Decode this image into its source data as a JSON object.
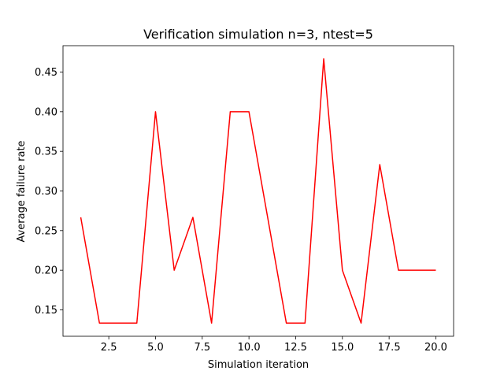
{
  "chart_data": {
    "type": "line",
    "title": "Verification simulation n=3, ntest=5",
    "xlabel": "Simulation iteration",
    "ylabel": "Average failure rate",
    "xlim": [
      0.05,
      20.95
    ],
    "ylim": [
      0.1167,
      0.4833
    ],
    "grid": false,
    "line_color": "#ff0000",
    "x_ticks": [
      2.5,
      5.0,
      7.5,
      10.0,
      12.5,
      15.0,
      17.5,
      20.0
    ],
    "x_tick_labels": [
      "2.5",
      "5.0",
      "7.5",
      "10.0",
      "12.5",
      "15.0",
      "17.5",
      "20.0"
    ],
    "y_ticks": [
      0.15,
      0.2,
      0.25,
      0.3,
      0.35,
      0.4,
      0.45
    ],
    "y_tick_labels": [
      "0.15",
      "0.20",
      "0.25",
      "0.30",
      "0.35",
      "0.40",
      "0.45"
    ],
    "x": [
      1,
      2,
      3,
      4,
      5,
      6,
      7,
      8,
      9,
      10,
      11,
      12,
      13,
      14,
      15,
      16,
      17,
      18,
      19,
      20
    ],
    "series": [
      {
        "values": [
          0.2667,
          0.1333,
          0.1333,
          0.1333,
          0.4,
          0.2,
          0.2667,
          0.1333,
          0.4,
          0.4,
          0.2667,
          0.1333,
          0.1333,
          0.4667,
          0.2,
          0.1333,
          0.3333,
          0.2,
          0.2,
          0.2
        ]
      }
    ]
  }
}
